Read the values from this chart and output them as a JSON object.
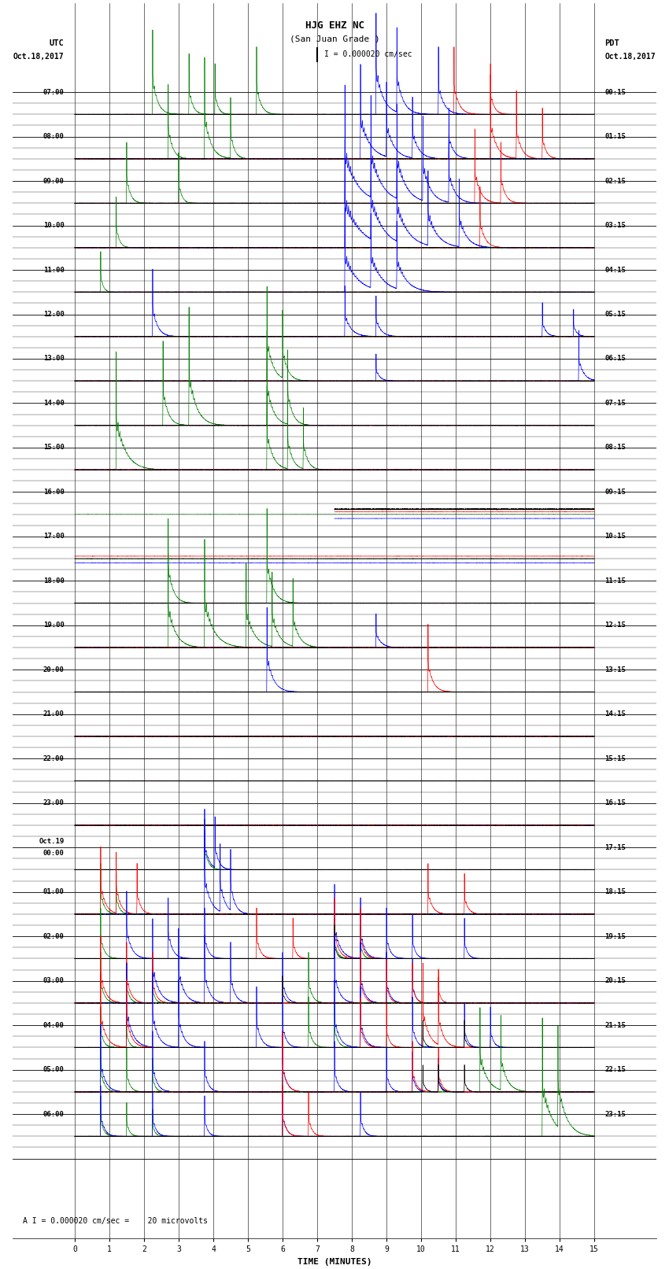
{
  "title_line1": "HJG EHZ NC",
  "title_line2": "(San Juan Grade )",
  "scale_label": "I = 0.000020 cm/sec",
  "left_label_top": "UTC",
  "left_label_date": "Oct.18,2017",
  "right_label_top": "PDT",
  "right_label_date": "Oct.18,2017",
  "bottom_label": "TIME (MINUTES)",
  "bottom_note": "A I = 0.000020 cm/sec =    20 microvolts",
  "utc_times_left": [
    "07:00",
    "08:00",
    "09:00",
    "10:00",
    "11:00",
    "12:00",
    "13:00",
    "14:00",
    "15:00",
    "16:00",
    "17:00",
    "18:00",
    "19:00",
    "20:00",
    "21:00",
    "22:00",
    "23:00",
    "Oct.19\n00:00",
    "01:00",
    "02:00",
    "03:00",
    "04:00",
    "05:00",
    "06:00"
  ],
  "pdt_times_right": [
    "00:15",
    "01:15",
    "02:15",
    "03:15",
    "04:15",
    "05:15",
    "06:15",
    "07:15",
    "08:15",
    "09:15",
    "10:15",
    "11:15",
    "12:15",
    "13:15",
    "14:15",
    "15:15",
    "16:15",
    "17:15",
    "18:15",
    "19:15",
    "20:15",
    "21:15",
    "22:15",
    "23:15"
  ],
  "n_rows": 24,
  "x_ticks": [
    0,
    1,
    2,
    3,
    4,
    5,
    6,
    7,
    8,
    9,
    10,
    11,
    12,
    13,
    14,
    15
  ],
  "bg_color": "#ffffff",
  "fig_width": 8.5,
  "fig_height": 16.13
}
